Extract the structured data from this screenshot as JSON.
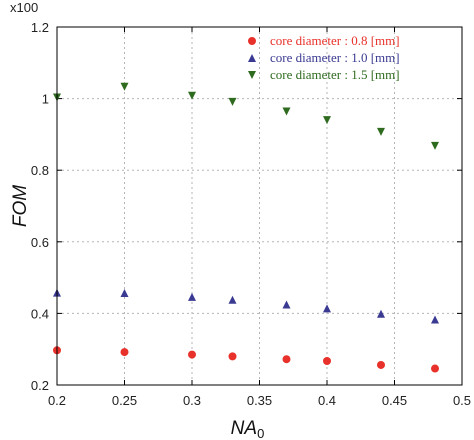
{
  "chart_data": {
    "type": "scatter",
    "xlabel": "NA",
    "xlabel_subscript": "0",
    "ylabel": "FOM",
    "y_multiplier_label": "x100",
    "xlim": [
      0.2,
      0.5
    ],
    "ylim": [
      0.2,
      1.2
    ],
    "xticks": [
      0.2,
      0.25,
      0.3,
      0.35,
      0.4,
      0.45,
      0.5
    ],
    "xtick_labels": [
      "0.2",
      "0.25",
      "0.3",
      "0.35",
      "0.4",
      "0.45",
      "0.5"
    ],
    "yticks": [
      0.2,
      0.4,
      0.6,
      0.8,
      1.0,
      1.2
    ],
    "ytick_labels": [
      "0.2",
      "0.4",
      "0.6",
      "0.8",
      "1",
      "1.2"
    ],
    "grid": true,
    "legend_position": "top-right",
    "series": [
      {
        "name": "core diameter : 0.8 [mm]",
        "marker": "circle",
        "color": "#e8312a",
        "x": [
          0.2,
          0.25,
          0.3,
          0.33,
          0.37,
          0.4,
          0.44,
          0.48
        ],
        "y": [
          0.297,
          0.292,
          0.285,
          0.28,
          0.272,
          0.267,
          0.256,
          0.246
        ]
      },
      {
        "name": "core diameter : 1.0 [mm]",
        "marker": "triangle-up",
        "color": "#3b3a92",
        "x": [
          0.2,
          0.25,
          0.3,
          0.33,
          0.37,
          0.4,
          0.44,
          0.48
        ],
        "y": [
          0.458,
          0.457,
          0.446,
          0.438,
          0.425,
          0.414,
          0.399,
          0.383
        ]
      },
      {
        "name": "core diameter : 1.5 [mm]",
        "marker": "triangle-down",
        "color": "#2e6b1f",
        "x": [
          0.2,
          0.25,
          0.3,
          0.33,
          0.37,
          0.4,
          0.44,
          0.48
        ],
        "y": [
          1.003,
          1.033,
          1.008,
          0.991,
          0.964,
          0.94,
          0.907,
          0.868
        ]
      }
    ]
  }
}
